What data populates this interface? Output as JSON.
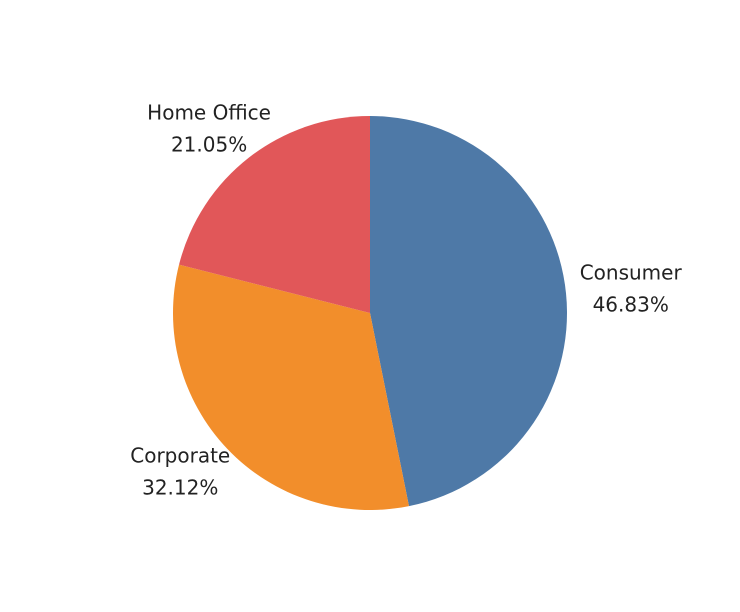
{
  "chart_data": {
    "type": "pie",
    "categories": [
      "Consumer",
      "Corporate",
      "Home Office"
    ],
    "values": [
      46.83,
      32.12,
      21.05
    ],
    "value_labels": [
      "46.83%",
      "32.12%",
      "21.05%"
    ],
    "colors": [
      "#4e79a7",
      "#f28e2b",
      "#e15759"
    ]
  }
}
